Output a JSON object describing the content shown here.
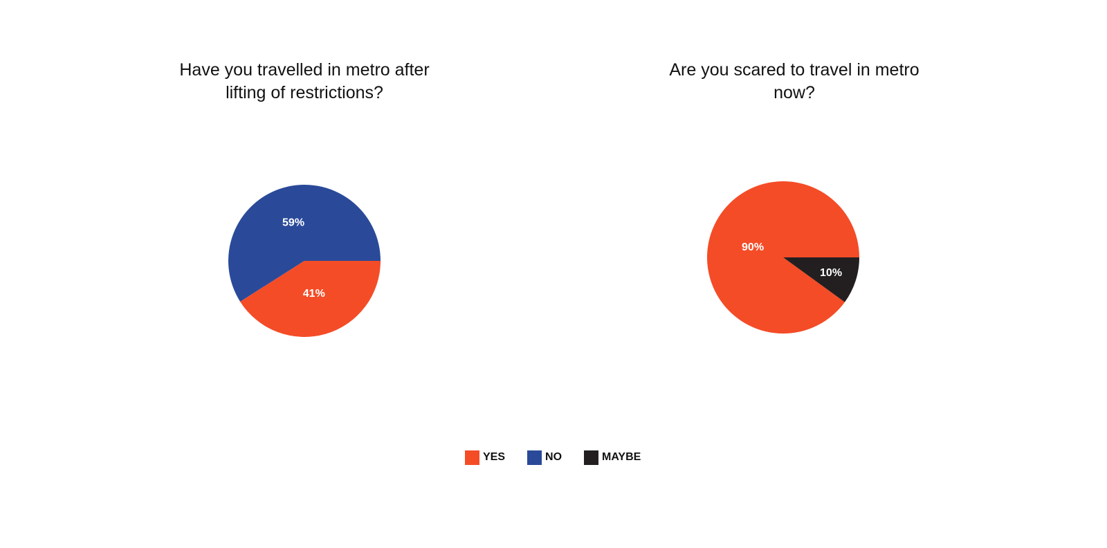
{
  "chart_data": [
    {
      "type": "pie",
      "title": "Have you travelled in metro after\nlifting of restrictions?",
      "slices": [
        {
          "name": "NO",
          "value": 59,
          "label": "59%",
          "color": "#2A4A99"
        },
        {
          "name": "YES",
          "value": 41,
          "label": "41%",
          "color": "#F44C27"
        }
      ]
    },
    {
      "type": "pie",
      "title": "Are you scared to travel in metro\nnow?",
      "slices": [
        {
          "name": "YES",
          "value": 90,
          "label": "90%",
          "color": "#F44C27"
        },
        {
          "name": "MAYBE",
          "value": 10,
          "label": "10%",
          "color": "#231F20"
        }
      ]
    }
  ],
  "legend": {
    "items": [
      {
        "label": "YES",
        "color": "#F44C27"
      },
      {
        "label": "NO",
        "color": "#2A4A99"
      },
      {
        "label": "MAYBE",
        "color": "#231F20"
      }
    ]
  }
}
